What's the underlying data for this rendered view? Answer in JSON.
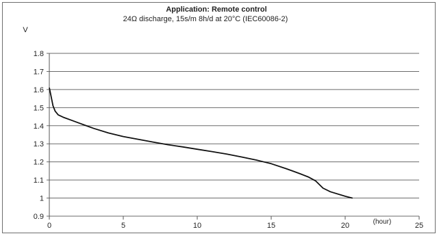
{
  "chart_data": {
    "type": "line",
    "title": "Application: Remote control",
    "subtitle": "24Ω discharge, 15s/m 8h/d at 20°C (IEC60086-2)",
    "ylabel": "V",
    "xlabel": "(hour)",
    "xlim": [
      0,
      25
    ],
    "ylim": [
      0.9,
      1.8
    ],
    "xticks": [
      "0",
      "5",
      "10",
      "15",
      "20",
      "25"
    ],
    "yticks": [
      "0.9",
      "1",
      "1.1",
      "1.2",
      "1.3",
      "1.4",
      "1.5",
      "1.6",
      "1.7",
      "1.8"
    ],
    "grid": "horizontal",
    "series": [
      {
        "x": [
          0,
          0.1,
          0.25,
          0.4,
          0.6,
          1,
          1.5,
          2,
          3,
          4,
          5,
          6,
          7,
          8,
          9,
          10,
          11,
          12,
          13,
          14,
          15,
          16,
          16.5,
          17,
          17.5,
          18,
          18.5,
          19,
          20,
          20.5
        ],
        "y": [
          1.61,
          1.57,
          1.51,
          1.48,
          1.46,
          1.445,
          1.43,
          1.415,
          1.385,
          1.36,
          1.34,
          1.325,
          1.31,
          1.295,
          1.283,
          1.27,
          1.257,
          1.243,
          1.227,
          1.21,
          1.19,
          1.163,
          1.148,
          1.133,
          1.117,
          1.095,
          1.055,
          1.035,
          1.01,
          1.0
        ],
        "color": "#111111"
      }
    ]
  }
}
